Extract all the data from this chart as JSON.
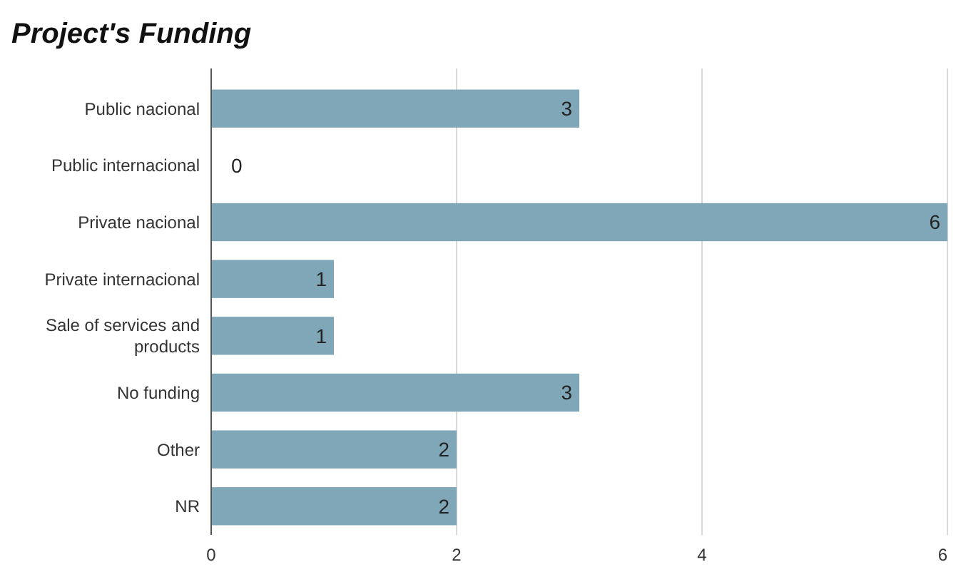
{
  "chart_data": {
    "type": "bar",
    "orientation": "horizontal",
    "title": "Project's Funding",
    "categories": [
      "Public nacional",
      "Public internacional",
      "Private nacional",
      "Private internacional",
      "Sale of services and products",
      "No funding",
      "Other",
      "NR"
    ],
    "values": [
      3,
      0,
      6,
      1,
      1,
      3,
      2,
      2
    ],
    "color": "#7fa7b8",
    "xlim": [
      0,
      6
    ],
    "xticks": [
      0,
      2,
      4,
      6
    ],
    "grid": "x",
    "data_labels": true
  }
}
